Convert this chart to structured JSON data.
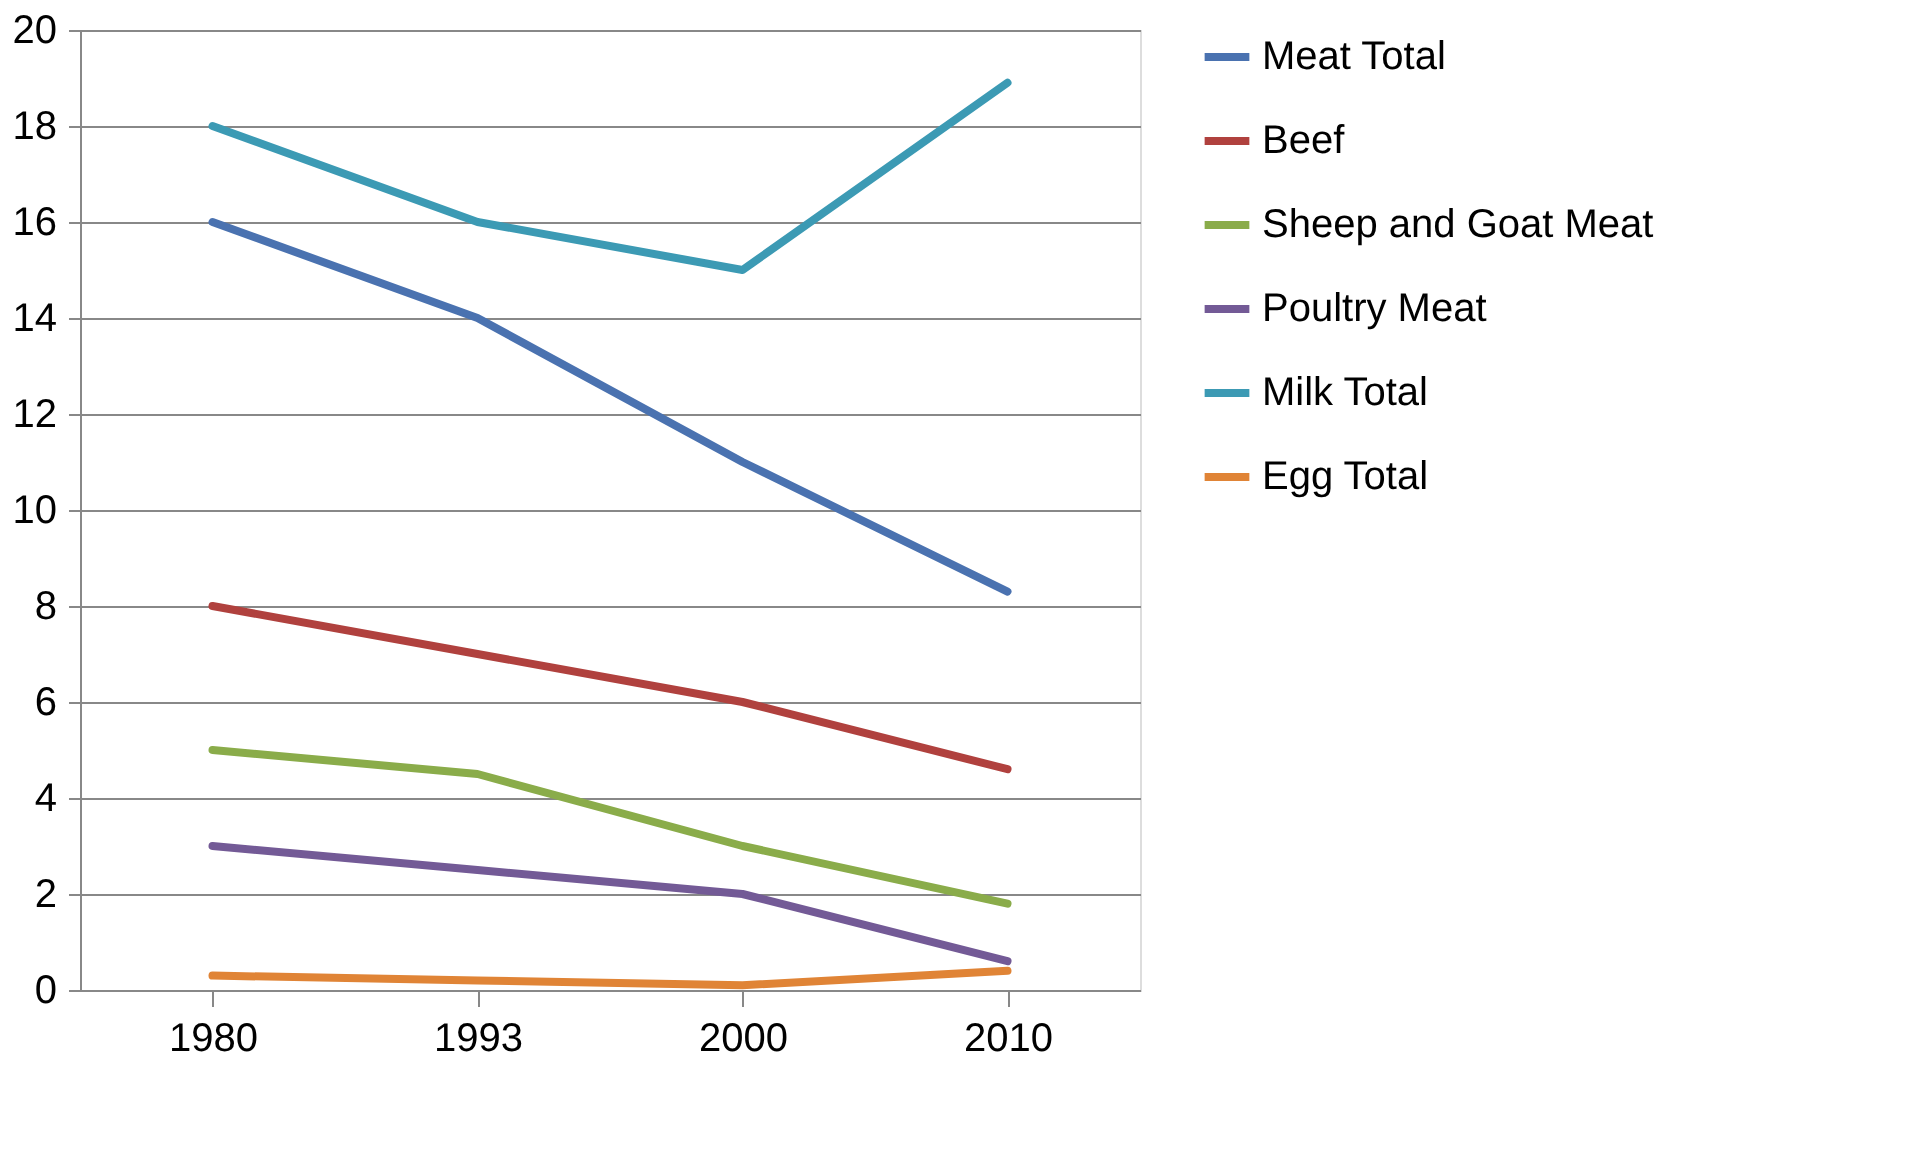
{
  "chart_data": {
    "type": "line",
    "categories": [
      "1980",
      "1993",
      "2000",
      "2010"
    ],
    "series": [
      {
        "name": "Meat Total",
        "color": "#4a72b0",
        "values": [
          16,
          14,
          11,
          8.3
        ]
      },
      {
        "name": "Beef",
        "color": "#b0413e",
        "values": [
          8,
          7,
          6,
          4.6
        ]
      },
      {
        "name": "Sheep and Goat Meat",
        "color": "#8aac4a",
        "values": [
          5,
          4.5,
          3,
          1.8
        ]
      },
      {
        "name": "Poultry Meat",
        "color": "#735a96",
        "values": [
          3,
          2.5,
          2,
          0.6
        ]
      },
      {
        "name": "Milk Total",
        "color": "#3c9ab4",
        "values": [
          18,
          16,
          15,
          18.9
        ]
      },
      {
        "name": "Egg Total",
        "color": "#e08436",
        "values": [
          0.3,
          0.2,
          0.1,
          0.4
        ]
      }
    ],
    "ylim": [
      0,
      20
    ],
    "yticks": [
      0,
      2,
      4,
      6,
      8,
      10,
      12,
      14,
      16,
      18,
      20
    ],
    "grid": "y",
    "legend": "right",
    "marker": "none",
    "line_style": "solid"
  }
}
